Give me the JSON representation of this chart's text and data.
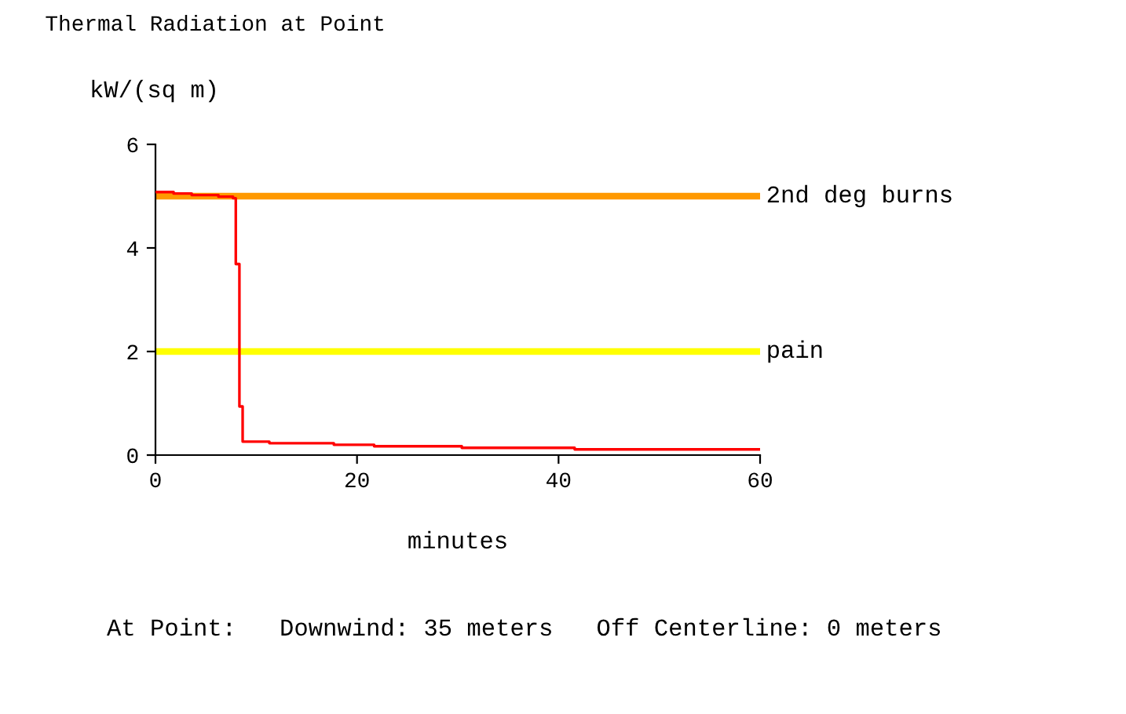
{
  "chart_data": {
    "type": "step",
    "title": "Thermal Radiation at Point",
    "ylabel": "kW/(sq m)",
    "xlabel": "minutes",
    "series": [
      {
        "color": "#ff0000",
        "x": [
          0,
          1.8,
          3.6,
          6.25,
          7.7,
          7.97,
          8.33,
          8.65,
          11.3,
          17.7,
          21.7,
          30.4,
          41.6,
          60
        ],
        "values": [
          5.08,
          5.05,
          5.02,
          4.99,
          4.96,
          3.69,
          0.94,
          0.26,
          0.23,
          0.2,
          0.17,
          0.14,
          0.11,
          0.11
        ]
      }
    ],
    "xlim": [
      0,
      60
    ],
    "xticks": [
      0,
      20,
      40,
      60
    ],
    "ylim": [
      0,
      6
    ],
    "yticks": [
      0,
      2,
      4,
      6
    ],
    "ref_lines": [
      {
        "axis": "y",
        "value": 5,
        "label": "2nd deg burns",
        "color": "#ff9900"
      },
      {
        "axis": "y",
        "value": 2,
        "label": "pain",
        "color": "#ffff00"
      }
    ],
    "annotations": [
      "At Point:   Downwind: 35 meters   Off Centerline: 0 meters"
    ],
    "grid": false
  }
}
